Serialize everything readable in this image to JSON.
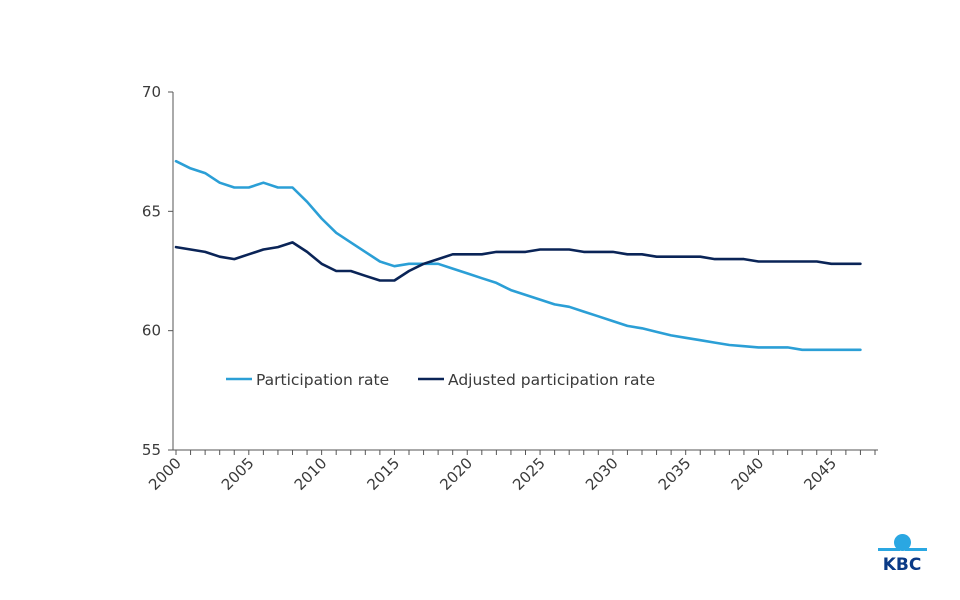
{
  "colors": {
    "participation": "#2b9fd6",
    "adjusted": "#0a2457",
    "axis": "#555555",
    "logo_blue": "#0a3a86",
    "logo_light": "#2aa7e2"
  },
  "logo": {
    "text": "KBC",
    "icon": "kbc-logo-icon"
  },
  "chart_data": {
    "type": "line",
    "title": "",
    "xlabel": "",
    "ylabel": "",
    "ylim": [
      55,
      70
    ],
    "yticks": [
      55,
      60,
      65,
      70
    ],
    "xlim": [
      2000,
      2048
    ],
    "xticks": [
      2000,
      2005,
      2010,
      2015,
      2020,
      2025,
      2030,
      2035,
      2040,
      2045
    ],
    "grid": false,
    "legend": "inside-bottom-center",
    "x": [
      2000,
      2001,
      2002,
      2003,
      2004,
      2005,
      2006,
      2007,
      2008,
      2009,
      2010,
      2011,
      2012,
      2013,
      2014,
      2015,
      2016,
      2017,
      2018,
      2019,
      2020,
      2021,
      2022,
      2023,
      2024,
      2025,
      2026,
      2027,
      2028,
      2029,
      2030,
      2031,
      2032,
      2033,
      2034,
      2035,
      2036,
      2037,
      2038,
      2039,
      2040,
      2041,
      2042,
      2043,
      2044,
      2045,
      2046,
      2047
    ],
    "series": [
      {
        "name": "Participation rate",
        "color_key": "participation",
        "values": [
          67.1,
          66.8,
          66.6,
          66.2,
          66.0,
          66.0,
          66.2,
          66.0,
          66.0,
          65.4,
          64.7,
          64.1,
          63.7,
          63.3,
          62.9,
          62.7,
          62.8,
          62.8,
          62.8,
          62.6,
          62.4,
          62.2,
          62.0,
          61.7,
          61.5,
          61.3,
          61.1,
          61.0,
          60.8,
          60.6,
          60.4,
          60.2,
          60.1,
          59.95,
          59.8,
          59.7,
          59.6,
          59.5,
          59.4,
          59.35,
          59.3,
          59.3,
          59.3,
          59.2,
          59.2,
          59.2,
          59.2,
          59.2
        ]
      },
      {
        "name": "Adjusted participation rate",
        "color_key": "adjusted",
        "values": [
          63.5,
          63.4,
          63.3,
          63.1,
          63.0,
          63.2,
          63.4,
          63.5,
          63.7,
          63.3,
          62.8,
          62.5,
          62.5,
          62.3,
          62.1,
          62.1,
          62.5,
          62.8,
          63.0,
          63.2,
          63.2,
          63.2,
          63.3,
          63.3,
          63.3,
          63.4,
          63.4,
          63.4,
          63.3,
          63.3,
          63.3,
          63.2,
          63.2,
          63.1,
          63.1,
          63.1,
          63.1,
          63.0,
          63.0,
          63.0,
          62.9,
          62.9,
          62.9,
          62.9,
          62.9,
          62.8,
          62.8,
          62.8
        ]
      }
    ]
  }
}
